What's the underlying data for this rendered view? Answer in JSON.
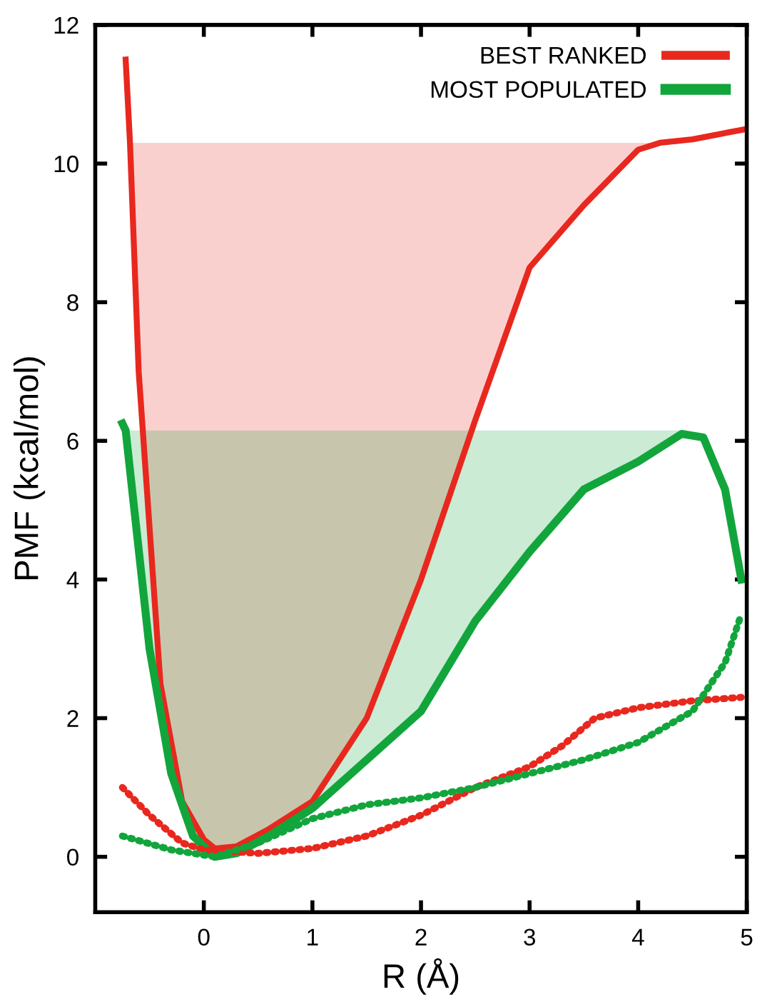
{
  "chart_data": {
    "type": "line",
    "xlabel": "R (Å)",
    "ylabel": "PMF (kcal/mol)",
    "xlim": [
      -1,
      5
    ],
    "xticks": [
      0,
      1,
      2,
      3,
      4,
      5
    ],
    "ylim": [
      -0.8,
      12
    ],
    "yticks": [
      0,
      2,
      4,
      6,
      8,
      10,
      12
    ],
    "grid": false,
    "legend": "top right",
    "marker": "none",
    "series": [
      {
        "name": "BEST RANKED",
        "color": "#e8281e",
        "line_style": "solid",
        "x": [
          -0.72,
          -0.68,
          -0.6,
          -0.4,
          -0.2,
          0,
          0.1,
          0.3,
          0.6,
          1,
          1.5,
          2,
          2.5,
          3,
          3.5,
          4,
          4.2,
          4.5,
          5
        ],
        "values": [
          11.5,
          10.3,
          7,
          2.5,
          0.8,
          0.25,
          0.12,
          0.15,
          0.4,
          0.8,
          2.0,
          4.0,
          6.3,
          8.5,
          9.4,
          10.2,
          10.3,
          10.35,
          10.5
        ],
        "lower": [
          null,
          10.3,
          7,
          2.5,
          0.8,
          0.25,
          0.12,
          0.15,
          0.4,
          0.8,
          2.0,
          4.0,
          6.3,
          8.5,
          9.4,
          10.2,
          10.3,
          null,
          null
        ],
        "upper": [
          null,
          10.3,
          10.3,
          10.3,
          10.3,
          10.3,
          10.3,
          10.3,
          10.3,
          10.3,
          10.3,
          10.3,
          10.3,
          10.3,
          10.3,
          10.3,
          10.3,
          null,
          null
        ]
      },
      {
        "name": "MOST POPULATED",
        "color": "#12a53c",
        "line_style": "solid",
        "x": [
          -0.75,
          -0.72,
          -0.5,
          -0.3,
          -0.1,
          0.1,
          0.3,
          0.6,
          1,
          1.5,
          2,
          2.5,
          3,
          3.5,
          4,
          4.4,
          4.6,
          4.8,
          4.95
        ],
        "values": [
          6.25,
          6.15,
          3,
          1.2,
          0.3,
          0,
          0.05,
          0.3,
          0.7,
          1.4,
          2.1,
          3.4,
          4.4,
          5.3,
          5.7,
          6.1,
          6.05,
          5.3,
          4.0
        ],
        "lower": [
          null,
          6.15,
          3,
          1.2,
          0.3,
          0,
          0.05,
          0.3,
          0.7,
          1.4,
          2.1,
          3.4,
          4.4,
          5.3,
          5.7,
          6.1,
          null,
          null,
          null
        ],
        "upper": [
          null,
          6.15,
          6.15,
          6.15,
          6.15,
          6.15,
          6.15,
          6.15,
          6.15,
          6.15,
          6.15,
          6.15,
          6.15,
          6.15,
          6.15,
          6.15,
          null,
          null,
          null
        ]
      },
      {
        "color": "#e8281e",
        "line_style": "dotted",
        "x": [
          -0.75,
          -0.5,
          -0.2,
          0,
          0.5,
          1,
          1.5,
          2,
          2.5,
          3,
          3.3,
          3.6,
          4,
          4.5,
          4.95
        ],
        "values": [
          1.0,
          0.6,
          0.2,
          0.1,
          0.05,
          0.12,
          0.3,
          0.6,
          1.0,
          1.3,
          1.6,
          2.0,
          2.15,
          2.25,
          2.3
        ]
      },
      {
        "color": "#12a53c",
        "line_style": "dotted",
        "x": [
          -0.75,
          -0.3,
          0.1,
          0.5,
          1,
          1.5,
          2,
          2.5,
          3,
          3.5,
          4,
          4.5,
          4.8,
          4.95
        ],
        "values": [
          0.3,
          0.1,
          0.0,
          0.2,
          0.55,
          0.75,
          0.85,
          1.0,
          1.2,
          1.4,
          1.65,
          2.1,
          2.8,
          3.5
        ]
      }
    ]
  }
}
